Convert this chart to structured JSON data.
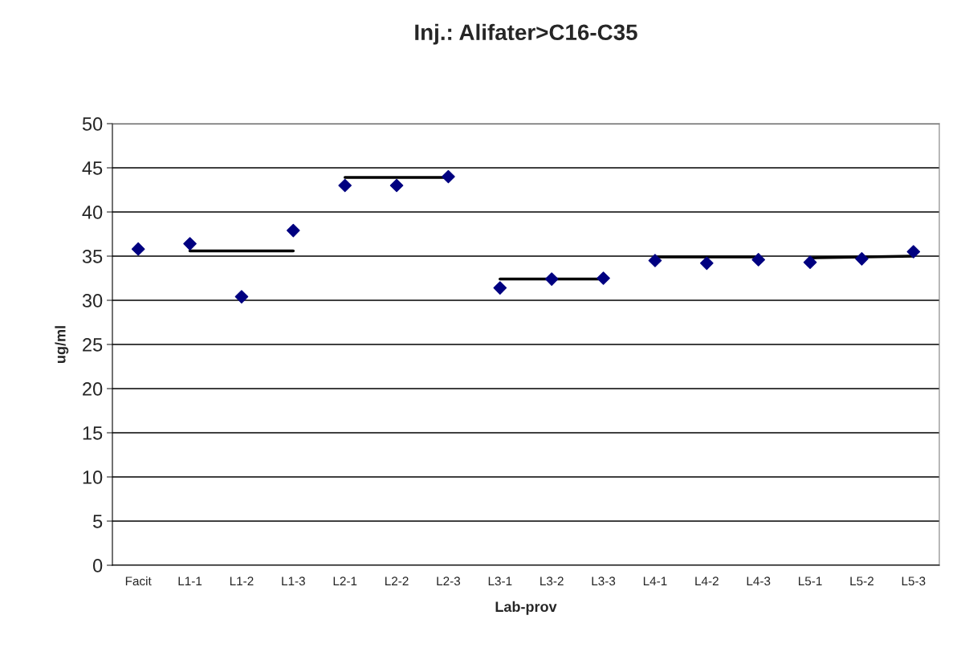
{
  "chart_data": {
    "type": "scatter",
    "title": "Inj.: Alifater>C16-C35",
    "xlabel": "Lab-prov",
    "ylabel": "ug/ml",
    "categories": [
      "Facit",
      "L1-1",
      "L1-2",
      "L1-3",
      "L2-1",
      "L2-2",
      "L2-3",
      "L3-1",
      "L3-2",
      "L3-3",
      "L4-1",
      "L4-2",
      "L4-3",
      "L5-1",
      "L5-2",
      "L5-3"
    ],
    "series": [
      {
        "color": "#000080",
        "marker": "diamond",
        "values": [
          35.8,
          36.4,
          30.4,
          37.9,
          43.0,
          43.0,
          44.0,
          31.4,
          32.4,
          32.5,
          34.5,
          34.2,
          34.6,
          34.3,
          34.7,
          35.5
        ]
      },
      {
        "type": "line",
        "color": "#000000",
        "x": [
          "L1-1",
          "L1-3"
        ],
        "values": [
          35.6,
          35.6
        ]
      },
      {
        "type": "line",
        "color": "#000000",
        "x": [
          "L2-1",
          "L2-3"
        ],
        "values": [
          43.9,
          43.9
        ]
      },
      {
        "type": "line",
        "color": "#000000",
        "x": [
          "L3-1",
          "L3-3"
        ],
        "values": [
          32.4,
          32.4
        ]
      },
      {
        "type": "line",
        "color": "#000000",
        "x": [
          "L4-1",
          "L4-3"
        ],
        "values": [
          34.9,
          34.9
        ]
      },
      {
        "type": "line",
        "color": "#000000",
        "x": [
          "L5-1",
          "L5-3"
        ],
        "values": [
          34.8,
          35.0
        ]
      }
    ],
    "ylim": [
      0,
      50
    ],
    "yticks": [
      0,
      5,
      10,
      15,
      20,
      25,
      30,
      35,
      40,
      45,
      50
    ],
    "grid": "y"
  }
}
